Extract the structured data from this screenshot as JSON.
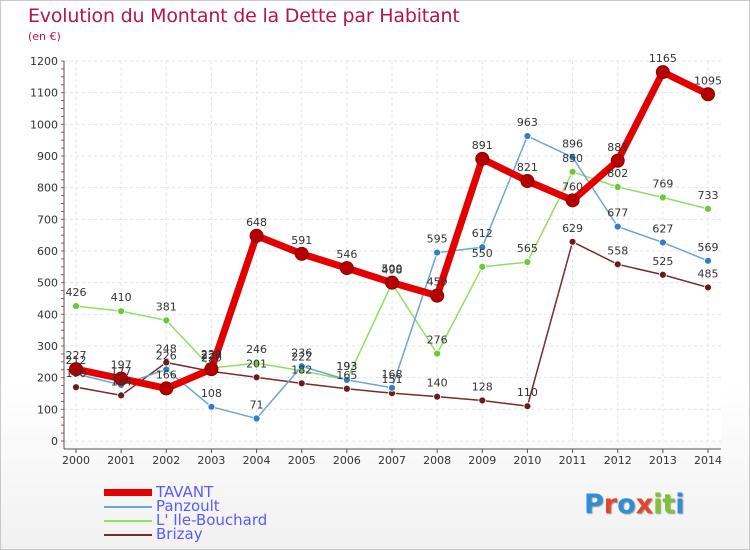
{
  "title": "Evolution du Montant de la Dette par Habitant",
  "unit": "(en €)",
  "logo": {
    "letters": [
      "P",
      "r",
      "o",
      "x",
      "i",
      "t",
      "i"
    ],
    "colors": [
      "#2e8fd6",
      "#e2462b",
      "#2e8fd6",
      "#e2462b",
      "#7fc134",
      "#7fc134",
      "#2e8fd6"
    ]
  },
  "chart_data": {
    "type": "line",
    "x": [
      "2000",
      "2001",
      "2002",
      "2003",
      "2004",
      "2005",
      "2006",
      "2007",
      "2008",
      "2009",
      "2010",
      "2011",
      "2012",
      "2013",
      "2014"
    ],
    "ylim": [
      0,
      1200
    ],
    "yticks": [
      0,
      100,
      200,
      300,
      400,
      500,
      600,
      700,
      800,
      900,
      1000,
      1100,
      1200
    ],
    "grid": true,
    "legend_position": "bottom-left",
    "series": [
      {
        "name": "TAVANT",
        "color": "#e30000",
        "marker": "#b50000",
        "width": 7,
        "values": [
          227,
          197,
          166,
          227,
          648,
          591,
          546,
          500,
          459,
          891,
          821,
          760,
          885,
          1165,
          1095
        ]
      },
      {
        "name": "Panzoult",
        "color": "#6aa6d8",
        "marker": "#2e7fc4",
        "width": 1.5,
        "values": [
          212,
          177,
          226,
          108,
          71,
          236,
          193,
          168,
          595,
          612,
          963,
          896,
          677,
          627,
          569
        ]
      },
      {
        "name": "L' Ile-Bouchard",
        "color": "#8ee060",
        "marker": "#6cc83a",
        "width": 1.5,
        "values": [
          426,
          410,
          381,
          230,
          246,
          222,
          193,
          498,
          276,
          550,
          565,
          850,
          802,
          769,
          733
        ]
      },
      {
        "name": "Brizay",
        "color": "#7a2a2a",
        "marker": "#6a1c1c",
        "width": 1.5,
        "values": [
          170,
          144,
          248,
          220,
          201,
          182,
          165,
          151,
          140,
          128,
          110,
          629,
          558,
          525,
          485
        ]
      }
    ],
    "labels": {
      "TAVANT": [
        "227",
        "197",
        "166",
        "227",
        "648",
        "591",
        "546",
        "500",
        "459",
        "891",
        "821",
        "760",
        "885",
        "1165",
        "1095"
      ],
      "Panzoult": [
        "212",
        "177",
        "226",
        "108",
        "71",
        "236",
        "193",
        "168",
        "595",
        "612",
        "963",
        "896",
        "677",
        "627",
        "569"
      ],
      "L' Ile-Bouchard": [
        "426",
        "410",
        "381",
        "230",
        "246",
        "222",
        "193",
        "498",
        "276",
        "550",
        "565",
        "850",
        "802",
        "769",
        "733"
      ],
      "Brizay": [
        "170",
        "144",
        "248",
        "220",
        "201",
        "182",
        "165",
        "151",
        "140",
        "128",
        "110",
        "629",
        "558",
        "525",
        "485"
      ]
    }
  }
}
